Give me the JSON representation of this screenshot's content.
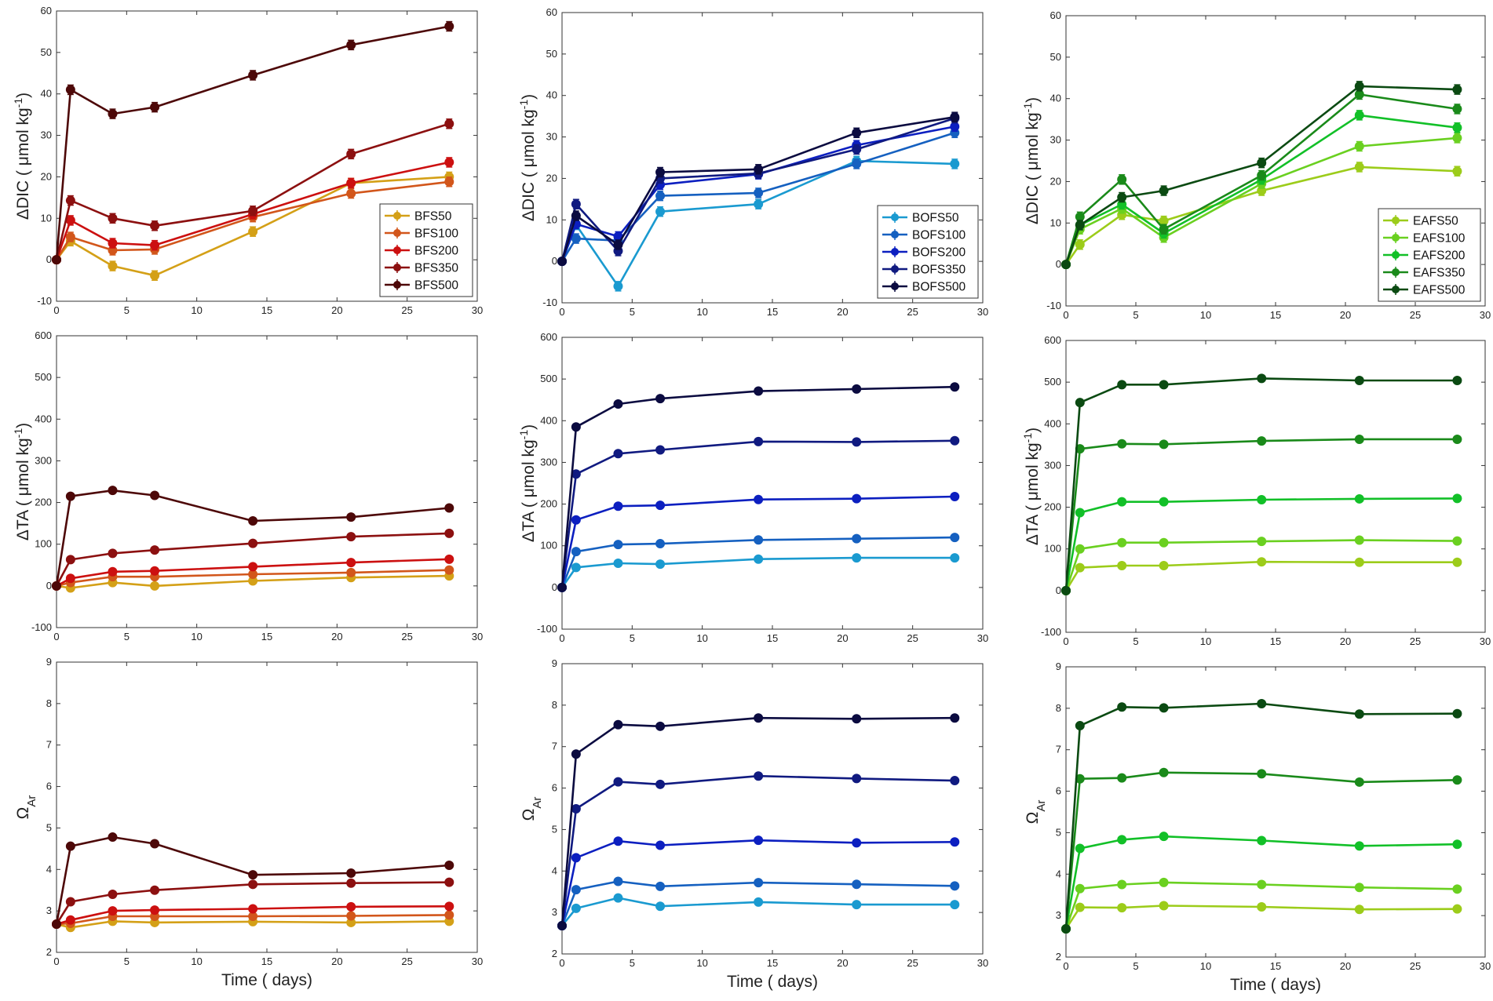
{
  "figure": {
    "days": [
      0,
      1,
      4,
      7,
      14,
      21,
      28
    ],
    "x_tick_labels": [
      "0",
      "5",
      "10",
      "15",
      "20",
      "25",
      "30"
    ],
    "x_axis_label": "Time ( days)",
    "row_labels": {
      "dic": "ΔDIC ( μmol kg-1)",
      "ta": "ΔTA ( μmol kg-1)",
      "omega": "ΩAr"
    }
  },
  "chart_data": [
    {
      "type": "line",
      "panel": "dic-bfs",
      "ylabel": "ΔDIC ( μmol kg-1)",
      "ylim": [
        -10,
        60
      ],
      "yticks": [
        -10,
        0,
        10,
        20,
        30,
        40,
        50,
        60
      ],
      "x": [
        0,
        1,
        4,
        7,
        14,
        21,
        28
      ],
      "legend": "bottom-right",
      "series": [
        {
          "name": "BFS50",
          "color": "#d4a017",
          "values": [
            0,
            4.5,
            -1.5,
            -3.8,
            6.8,
            18.5,
            20.0
          ]
        },
        {
          "name": "BFS100",
          "color": "#d2561b",
          "values": [
            0,
            5.5,
            2.3,
            2.5,
            10.3,
            16.0,
            18.8
          ]
        },
        {
          "name": "BFS200",
          "color": "#cc1010",
          "values": [
            0,
            9.5,
            4.0,
            3.5,
            11.0,
            18.5,
            23.5
          ]
        },
        {
          "name": "BFS350",
          "color": "#8c1010",
          "values": [
            0,
            14.3,
            10.0,
            8.2,
            11.8,
            25.5,
            32.8
          ]
        },
        {
          "name": "BFS500",
          "color": "#4d0808",
          "values": [
            0,
            41.0,
            35.2,
            36.8,
            44.5,
            51.8,
            56.3
          ]
        }
      ]
    },
    {
      "type": "line",
      "panel": "dic-bofs",
      "ylabel": "ΔDIC ( μmol kg-1)",
      "ylim": [
        -10,
        60
      ],
      "yticks": [
        -10,
        0,
        10,
        20,
        30,
        40,
        50,
        60
      ],
      "x": [
        0,
        1,
        4,
        7,
        14,
        21,
        28
      ],
      "legend": "bottom-right",
      "series": [
        {
          "name": "BOFS50",
          "color": "#1a9ad0",
          "values": [
            0,
            8.8,
            -6.0,
            12.0,
            13.8,
            24.2,
            23.5
          ]
        },
        {
          "name": "BOFS100",
          "color": "#1560c0",
          "values": [
            0,
            5.5,
            5.0,
            15.8,
            16.5,
            23.5,
            31.0
          ]
        },
        {
          "name": "BOFS200",
          "color": "#0c1fc0",
          "values": [
            0,
            9.0,
            6.0,
            18.5,
            21.0,
            28.0,
            32.5
          ]
        },
        {
          "name": "BOFS350",
          "color": "#101a80",
          "values": [
            0,
            13.8,
            2.5,
            20.0,
            21.2,
            27.0,
            34.5
          ]
        },
        {
          "name": "BOFS500",
          "color": "#0b0b40",
          "values": [
            0,
            11.0,
            4.0,
            21.5,
            22.2,
            31.0,
            34.8
          ]
        }
      ]
    },
    {
      "type": "line",
      "panel": "dic-eafs",
      "ylabel": "ΔDIC ( μmol kg-1)",
      "ylim": [
        -10,
        60
      ],
      "yticks": [
        -10,
        0,
        10,
        20,
        30,
        40,
        50,
        60
      ],
      "x": [
        0,
        1,
        4,
        7,
        14,
        21,
        28
      ],
      "legend": "bottom-right",
      "series": [
        {
          "name": "EAFS50",
          "color": "#9ccc1a",
          "values": [
            0,
            4.8,
            12.0,
            10.5,
            17.8,
            23.5,
            22.5
          ]
        },
        {
          "name": "EAFS100",
          "color": "#6ad020",
          "values": [
            0,
            8.5,
            13.5,
            6.5,
            19.5,
            28.5,
            30.5
          ]
        },
        {
          "name": "EAFS200",
          "color": "#12c028",
          "values": [
            0,
            9.5,
            14.5,
            7.5,
            20.5,
            36.0,
            33.0
          ]
        },
        {
          "name": "EAFS350",
          "color": "#1a8a1a",
          "values": [
            0,
            11.5,
            20.5,
            8.5,
            21.5,
            41.0,
            37.5
          ]
        },
        {
          "name": "EAFS500",
          "color": "#0b4a12",
          "values": [
            0,
            9.5,
            16.2,
            17.8,
            24.5,
            43.0,
            42.2
          ]
        }
      ]
    },
    {
      "type": "line",
      "panel": "ta-bfs",
      "ylabel": "ΔTA ( μmol kg-1)",
      "ylim": [
        -100,
        600
      ],
      "yticks": [
        -100,
        0,
        100,
        200,
        300,
        400,
        500,
        600
      ],
      "x": [
        0,
        1,
        4,
        7,
        14,
        21,
        28
      ],
      "series": [
        {
          "name": "BFS50",
          "color": "#d4a017",
          "values": [
            0,
            -5,
            8,
            0,
            12,
            20,
            24
          ]
        },
        {
          "name": "BFS100",
          "color": "#d2561b",
          "values": [
            0,
            8,
            22,
            22,
            28,
            32,
            38
          ]
        },
        {
          "name": "BFS200",
          "color": "#cc1010",
          "values": [
            0,
            18,
            34,
            36,
            46,
            56,
            64
          ]
        },
        {
          "name": "BFS350",
          "color": "#8c1010",
          "values": [
            0,
            63,
            78,
            86,
            102,
            118,
            126
          ]
        },
        {
          "name": "BFS500",
          "color": "#4d0808",
          "values": [
            0,
            215,
            229,
            217,
            156,
            165,
            187
          ]
        }
      ]
    },
    {
      "type": "line",
      "panel": "ta-bofs",
      "ylabel": "ΔTA ( μmol kg-1)",
      "ylim": [
        -100,
        600
      ],
      "yticks": [
        -100,
        0,
        100,
        200,
        300,
        400,
        500,
        600
      ],
      "x": [
        0,
        1,
        4,
        7,
        14,
        21,
        28
      ],
      "series": [
        {
          "name": "BOFS50",
          "color": "#1a9ad0",
          "values": [
            0,
            48,
            58,
            56,
            68,
            71,
            71
          ]
        },
        {
          "name": "BOFS100",
          "color": "#1560c0",
          "values": [
            0,
            86,
            103,
            105,
            114,
            117,
            120
          ]
        },
        {
          "name": "BOFS200",
          "color": "#0c1fc0",
          "values": [
            0,
            162,
            195,
            197,
            211,
            213,
            218
          ]
        },
        {
          "name": "BOFS350",
          "color": "#101a80",
          "values": [
            0,
            272,
            321,
            330,
            350,
            349,
            352
          ]
        },
        {
          "name": "BOFS500",
          "color": "#0b0b40",
          "values": [
            0,
            385,
            440,
            453,
            471,
            476,
            481
          ]
        }
      ]
    },
    {
      "type": "line",
      "panel": "ta-eafs",
      "ylabel": "ΔTA ( μmol kg-1)",
      "ylim": [
        -100,
        600
      ],
      "yticks": [
        -100,
        0,
        100,
        200,
        300,
        400,
        500,
        600
      ],
      "x": [
        0,
        1,
        4,
        7,
        14,
        21,
        28
      ],
      "series": [
        {
          "name": "EAFS50",
          "color": "#9ccc1a",
          "values": [
            0,
            55,
            60,
            60,
            69,
            68,
            68
          ]
        },
        {
          "name": "EAFS100",
          "color": "#6ad020",
          "values": [
            0,
            100,
            115,
            115,
            118,
            121,
            119
          ]
        },
        {
          "name": "EAFS200",
          "color": "#12c028",
          "values": [
            0,
            187,
            213,
            213,
            218,
            220,
            221
          ]
        },
        {
          "name": "EAFS350",
          "color": "#1a8a1a",
          "values": [
            0,
            340,
            352,
            351,
            359,
            363,
            363
          ]
        },
        {
          "name": "EAFS500",
          "color": "#0b4a12",
          "values": [
            0,
            451,
            494,
            494,
            509,
            504,
            504
          ]
        }
      ]
    },
    {
      "type": "line",
      "panel": "omega-bfs",
      "ylabel": "ΩAr",
      "ylim": [
        2,
        9
      ],
      "yticks": [
        2,
        3,
        4,
        5,
        6,
        7,
        8,
        9
      ],
      "x": [
        0,
        1,
        4,
        7,
        14,
        21,
        28
      ],
      "xlabel": "Time ( days)",
      "series": [
        {
          "name": "BFS50",
          "color": "#d4a017",
          "values": [
            2.68,
            2.6,
            2.75,
            2.72,
            2.74,
            2.72,
            2.75
          ]
        },
        {
          "name": "BFS100",
          "color": "#d2561b",
          "values": [
            2.68,
            2.7,
            2.87,
            2.87,
            2.87,
            2.88,
            2.9
          ]
        },
        {
          "name": "BFS200",
          "color": "#cc1010",
          "values": [
            2.68,
            2.78,
            3.0,
            3.02,
            3.05,
            3.1,
            3.11
          ]
        },
        {
          "name": "BFS350",
          "color": "#8c1010",
          "values": [
            2.68,
            3.22,
            3.4,
            3.5,
            3.64,
            3.67,
            3.69
          ]
        },
        {
          "name": "BFS500",
          "color": "#4d0808",
          "values": [
            2.68,
            4.56,
            4.78,
            4.62,
            3.87,
            3.91,
            4.1
          ]
        }
      ]
    },
    {
      "type": "line",
      "panel": "omega-bofs",
      "ylabel": "ΩAr",
      "ylim": [
        2,
        9
      ],
      "yticks": [
        2,
        3,
        4,
        5,
        6,
        7,
        8,
        9
      ],
      "x": [
        0,
        1,
        4,
        7,
        14,
        21,
        28
      ],
      "xlabel": "Time ( days)",
      "series": [
        {
          "name": "BOFS50",
          "color": "#1a9ad0",
          "values": [
            2.68,
            3.1,
            3.35,
            3.15,
            3.25,
            3.19,
            3.19
          ]
        },
        {
          "name": "BOFS100",
          "color": "#1560c0",
          "values": [
            2.68,
            3.55,
            3.75,
            3.63,
            3.72,
            3.68,
            3.64
          ]
        },
        {
          "name": "BOFS200",
          "color": "#0c1fc0",
          "values": [
            2.68,
            4.32,
            4.72,
            4.62,
            4.74,
            4.68,
            4.7
          ]
        },
        {
          "name": "BOFS350",
          "color": "#101a80",
          "values": [
            2.68,
            5.5,
            6.15,
            6.09,
            6.29,
            6.23,
            6.18
          ]
        },
        {
          "name": "BOFS500",
          "color": "#0b0b40",
          "values": [
            2.68,
            6.82,
            7.53,
            7.49,
            7.69,
            7.67,
            7.69
          ]
        }
      ]
    },
    {
      "type": "line",
      "panel": "omega-eafs",
      "ylabel": "ΩAr",
      "ylim": [
        2,
        9
      ],
      "yticks": [
        2,
        3,
        4,
        5,
        6,
        7,
        8,
        9
      ],
      "x": [
        0,
        1,
        4,
        7,
        14,
        21,
        28
      ],
      "xlabel": "Time ( days)",
      "series": [
        {
          "name": "EAFS50",
          "color": "#9ccc1a",
          "values": [
            2.68,
            3.2,
            3.19,
            3.24,
            3.21,
            3.15,
            3.16
          ]
        },
        {
          "name": "EAFS100",
          "color": "#6ad020",
          "values": [
            2.68,
            3.65,
            3.75,
            3.8,
            3.75,
            3.68,
            3.64
          ]
        },
        {
          "name": "EAFS200",
          "color": "#12c028",
          "values": [
            2.68,
            4.62,
            4.83,
            4.91,
            4.81,
            4.68,
            4.72
          ]
        },
        {
          "name": "EAFS350",
          "color": "#1a8a1a",
          "values": [
            2.68,
            6.3,
            6.32,
            6.45,
            6.42,
            6.22,
            6.27
          ]
        },
        {
          "name": "EAFS500",
          "color": "#0b4a12",
          "values": [
            2.68,
            7.58,
            8.03,
            8.01,
            8.11,
            7.86,
            7.87
          ]
        }
      ]
    }
  ]
}
